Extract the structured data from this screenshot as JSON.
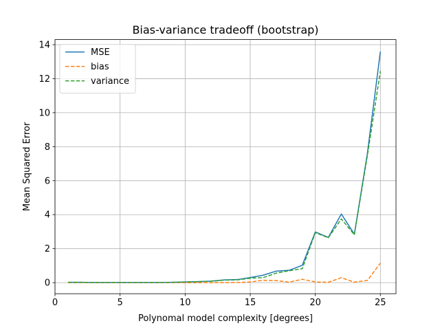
{
  "chart_data": {
    "type": "line",
    "title": "Bias-variance tradeoff (bootstrap)",
    "xlabel": "Polynomal model complexity [degrees]",
    "ylabel": "Mean Squared Error",
    "xlim": [
      0,
      26.2
    ],
    "ylim": [
      -0.65,
      14.3
    ],
    "xticks": [
      0,
      5,
      10,
      15,
      20,
      25
    ],
    "yticks": [
      0,
      2,
      4,
      6,
      8,
      10,
      12,
      14
    ],
    "grid": true,
    "legend_position": "top-left",
    "x": [
      1,
      2,
      3,
      4,
      5,
      6,
      7,
      8,
      9,
      10,
      11,
      12,
      13,
      14,
      15,
      16,
      17,
      18,
      19,
      20,
      21,
      22,
      23,
      24,
      25
    ],
    "series": [
      {
        "name": "MSE",
        "color": "#1f77b4",
        "style": "solid",
        "values": [
          0.02,
          0.02,
          0.01,
          0.01,
          0.01,
          0.01,
          0.01,
          0.01,
          0.02,
          0.04,
          0.06,
          0.09,
          0.16,
          0.18,
          0.3,
          0.44,
          0.68,
          0.73,
          1.02,
          2.98,
          2.66,
          4.04,
          2.85,
          7.6,
          13.6
        ]
      },
      {
        "name": "bias",
        "color": "#ff7f0e",
        "style": "dashed",
        "values": [
          0.0,
          0.0,
          0.0,
          0.0,
          0.0,
          0.0,
          0.0,
          0.0,
          0.0,
          0.0,
          0.0,
          0.0,
          0.0,
          0.01,
          0.04,
          0.14,
          0.12,
          0.03,
          0.2,
          0.04,
          0.02,
          0.29,
          0.03,
          0.13,
          1.15
        ]
      },
      {
        "name": "variance",
        "color": "#2ca02c",
        "style": "dashed",
        "values": [
          0.02,
          0.02,
          0.01,
          0.01,
          0.01,
          0.01,
          0.01,
          0.01,
          0.02,
          0.04,
          0.06,
          0.08,
          0.15,
          0.16,
          0.26,
          0.3,
          0.56,
          0.7,
          0.82,
          2.94,
          2.64,
          3.75,
          2.82,
          7.47,
          12.45
        ]
      }
    ]
  }
}
